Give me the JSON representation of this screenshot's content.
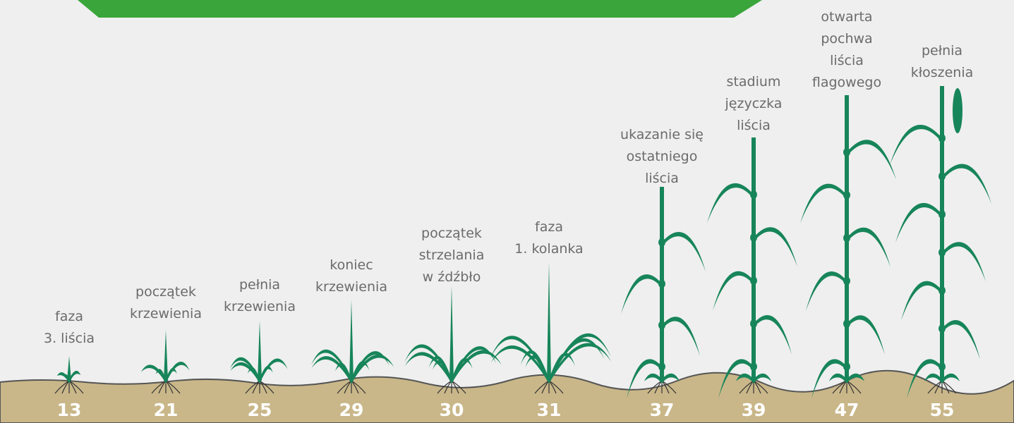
{
  "stages": [
    {
      "code": "13",
      "label": [
        "faza",
        "3. liścia"
      ]
    },
    {
      "code": "21",
      "label": [
        "początek",
        "krzewienia"
      ]
    },
    {
      "code": "25",
      "label": [
        "pełnia",
        "krzewienia"
      ]
    },
    {
      "code": "29",
      "label": [
        "koniec",
        "krzewienia"
      ]
    },
    {
      "code": "30",
      "label": [
        "początek",
        "strzelania",
        "w źdźbło"
      ]
    },
    {
      "code": "31",
      "label": [
        "faza",
        "1. kolanka"
      ]
    },
    {
      "code": "37",
      "label": [
        "ukazanie się",
        "ostatniego",
        "liścia"
      ]
    },
    {
      "code": "39",
      "label": [
        "stadium",
        "języczka",
        "liścia"
      ]
    },
    {
      "code": "47",
      "label": [
        "otwarta",
        "pochwa",
        "liścia",
        "flagowego"
      ]
    },
    {
      "code": "55",
      "label": [
        "pełnia",
        "kłoszenia"
      ]
    }
  ]
}
